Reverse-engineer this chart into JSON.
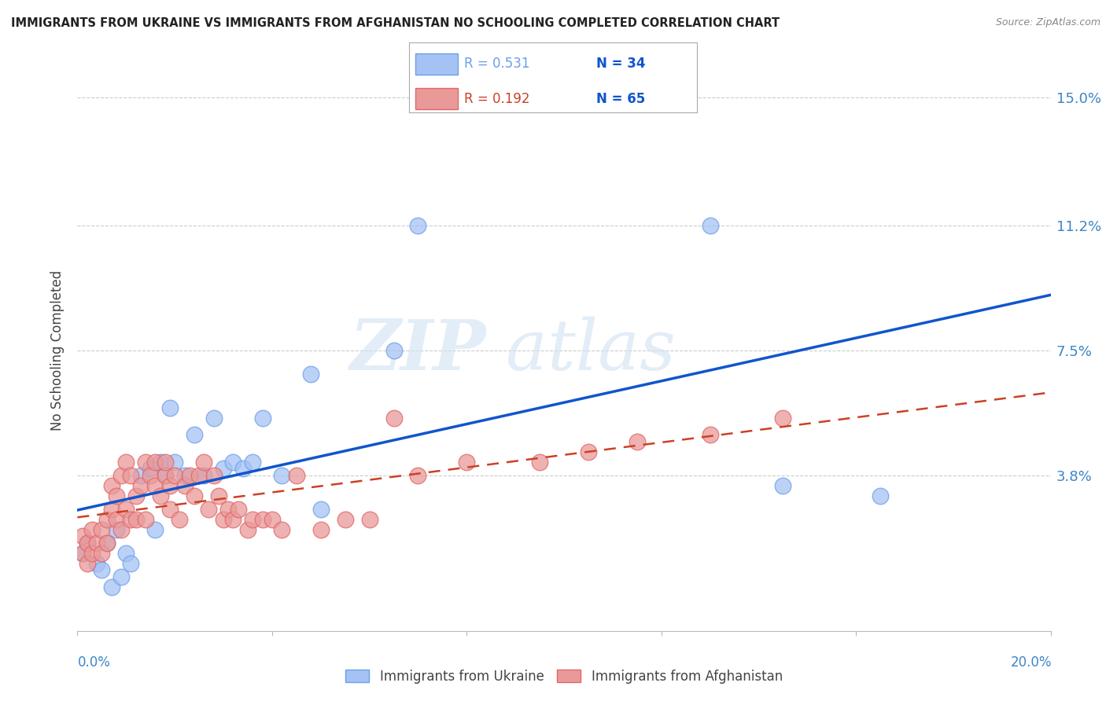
{
  "title": "IMMIGRANTS FROM UKRAINE VS IMMIGRANTS FROM AFGHANISTAN NO SCHOOLING COMPLETED CORRELATION CHART",
  "source": "Source: ZipAtlas.com",
  "ylabel": "No Schooling Completed",
  "xlim": [
    0.0,
    0.2
  ],
  "ylim": [
    -0.008,
    0.158
  ],
  "ukraine_color": "#a4c2f4",
  "ukraine_color_edge": "#6d9eeb",
  "afghanistan_color": "#ea9999",
  "afghanistan_color_edge": "#e06666",
  "ukraine_R": 0.531,
  "ukraine_N": 34,
  "afghanistan_R": 0.192,
  "afghanistan_N": 65,
  "ukraine_line_color": "#1155cc",
  "afghanistan_line_color": "#cc4125",
  "legend_label_ukraine": "Immigrants from Ukraine",
  "legend_label_afghanistan": "Immigrants from Afghanistan",
  "ytick_vals": [
    0.038,
    0.075,
    0.112,
    0.15
  ],
  "ytick_labels": [
    "3.8%",
    "7.5%",
    "11.2%",
    "15.0%"
  ],
  "watermark_top": "ZIP",
  "watermark_bottom": "atlas",
  "ukraine_x": [
    0.001,
    0.002,
    0.004,
    0.005,
    0.006,
    0.007,
    0.008,
    0.009,
    0.01,
    0.011,
    0.013,
    0.015,
    0.016,
    0.017,
    0.018,
    0.019,
    0.02,
    0.022,
    0.024,
    0.026,
    0.028,
    0.03,
    0.032,
    0.034,
    0.036,
    0.038,
    0.042,
    0.048,
    0.05,
    0.065,
    0.07,
    0.13,
    0.145,
    0.165
  ],
  "ukraine_y": [
    0.015,
    0.018,
    0.012,
    0.01,
    0.018,
    0.005,
    0.022,
    0.008,
    0.015,
    0.012,
    0.038,
    0.04,
    0.022,
    0.042,
    0.038,
    0.058,
    0.042,
    0.038,
    0.05,
    0.038,
    0.055,
    0.04,
    0.042,
    0.04,
    0.042,
    0.055,
    0.038,
    0.068,
    0.028,
    0.075,
    0.112,
    0.112,
    0.035,
    0.032
  ],
  "afghanistan_x": [
    0.001,
    0.001,
    0.002,
    0.002,
    0.003,
    0.003,
    0.004,
    0.005,
    0.005,
    0.006,
    0.006,
    0.007,
    0.007,
    0.008,
    0.008,
    0.009,
    0.009,
    0.01,
    0.01,
    0.011,
    0.011,
    0.012,
    0.012,
    0.013,
    0.014,
    0.014,
    0.015,
    0.016,
    0.016,
    0.017,
    0.018,
    0.018,
    0.019,
    0.019,
    0.02,
    0.021,
    0.022,
    0.023,
    0.024,
    0.025,
    0.026,
    0.027,
    0.028,
    0.029,
    0.03,
    0.031,
    0.032,
    0.033,
    0.035,
    0.036,
    0.038,
    0.04,
    0.042,
    0.045,
    0.05,
    0.055,
    0.06,
    0.065,
    0.07,
    0.08,
    0.095,
    0.105,
    0.115,
    0.13,
    0.145
  ],
  "afghanistan_y": [
    0.015,
    0.02,
    0.012,
    0.018,
    0.015,
    0.022,
    0.018,
    0.015,
    0.022,
    0.025,
    0.018,
    0.028,
    0.035,
    0.025,
    0.032,
    0.022,
    0.038,
    0.028,
    0.042,
    0.025,
    0.038,
    0.025,
    0.032,
    0.035,
    0.042,
    0.025,
    0.038,
    0.035,
    0.042,
    0.032,
    0.038,
    0.042,
    0.028,
    0.035,
    0.038,
    0.025,
    0.035,
    0.038,
    0.032,
    0.038,
    0.042,
    0.028,
    0.038,
    0.032,
    0.025,
    0.028,
    0.025,
    0.028,
    0.022,
    0.025,
    0.025,
    0.025,
    0.022,
    0.038,
    0.022,
    0.025,
    0.025,
    0.055,
    0.038,
    0.042,
    0.042,
    0.045,
    0.048,
    0.05,
    0.055
  ]
}
